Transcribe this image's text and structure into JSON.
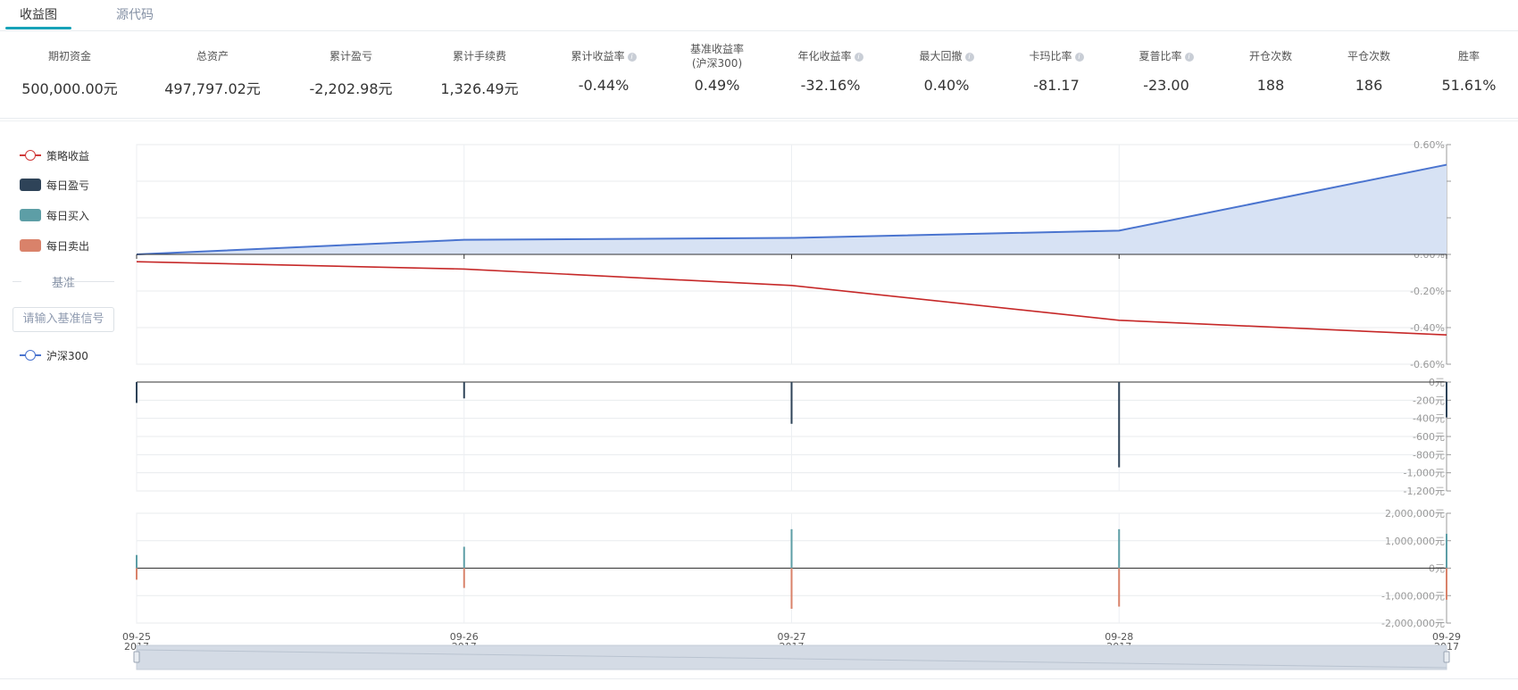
{
  "tabs": [
    {
      "label": "收益图",
      "active": true
    },
    {
      "label": "源代码",
      "active": false
    }
  ],
  "stats": [
    {
      "label": "期初资金",
      "value": "500,000.00元",
      "info": false
    },
    {
      "label": "总资产",
      "value": "497,797.02元",
      "info": false
    },
    {
      "label": "累计盈亏",
      "value": "-2,202.98元",
      "info": false
    },
    {
      "label": "累计手续费",
      "value": "1,326.49元",
      "info": false
    },
    {
      "label": "累计收益率",
      "value": "-0.44%",
      "info": true
    },
    {
      "label": "基准收益率",
      "sublabel": "(沪深300)",
      "value": "0.49%",
      "info": false
    },
    {
      "label": "年化收益率",
      "value": "-32.16%",
      "info": true
    },
    {
      "label": "最大回撤",
      "value": "0.40%",
      "info": true
    },
    {
      "label": "卡玛比率",
      "value": "-81.17",
      "info": true
    },
    {
      "label": "夏普比率",
      "value": "-23.00",
      "info": true
    },
    {
      "label": "开仓次数",
      "value": "188",
      "info": false
    },
    {
      "label": "平仓次数",
      "value": "186",
      "info": false
    },
    {
      "label": "胜率",
      "value": "51.61%",
      "info": false
    }
  ],
  "legend": {
    "items": [
      {
        "label": "策略收益",
        "kind": "line",
        "color": "#d03a3a"
      },
      {
        "label": "每日盈亏",
        "kind": "rect",
        "color": "#2e4358"
      },
      {
        "label": "每日买入",
        "kind": "rect",
        "color": "#5d9ea6"
      },
      {
        "label": "每日卖出",
        "kind": "rect",
        "color": "#d9826a"
      }
    ],
    "benchmark_title": "基准",
    "benchmark_placeholder": "请输入基准信号",
    "benchmark_item": {
      "label": "沪深300",
      "kind": "line",
      "color": "#4a74cf"
    }
  },
  "chart_data": [
    {
      "type": "line",
      "x": [
        "09-25\n2017",
        "09-26\n2017",
        "09-27\n2017",
        "09-28\n2017",
        "09-29\n2017"
      ],
      "series": [
        {
          "name": "策略收益",
          "values": [
            -0.04,
            -0.08,
            -0.17,
            -0.36,
            -0.44
          ],
          "color": "#c62828"
        },
        {
          "name": "沪深300",
          "values": [
            0.0,
            0.08,
            0.09,
            0.13,
            0.49
          ],
          "color": "#4a74cf",
          "fill": "#d7e2f4"
        }
      ],
      "ylim": [
        -0.6,
        0.6
      ],
      "yticks": [
        "0.60%",
        "0.40%",
        "0.20%",
        "0.00%",
        "-0.20%",
        "-0.40%",
        "-0.60%"
      ],
      "grid": true
    },
    {
      "type": "bar",
      "series": [
        {
          "name": "每日盈亏",
          "values": [
            -230,
            -180,
            -460,
            -940,
            -390
          ],
          "color": "#2e4358"
        }
      ],
      "ylim": [
        -1200,
        0
      ],
      "yticks": [
        "0元",
        "-200元",
        "-400元",
        "-600元",
        "-800元",
        "-1,000元",
        "-1,200元"
      ],
      "grid": true
    },
    {
      "type": "bar",
      "series": [
        {
          "name": "每日买入",
          "values": [
            480000,
            780000,
            1420000,
            1420000,
            1250000
          ],
          "color": "#5d9ea6"
        },
        {
          "name": "每日卖出",
          "values": [
            -420000,
            -720000,
            -1480000,
            -1400000,
            -1150000
          ],
          "color": "#d9826a"
        }
      ],
      "ylim": [
        -2000000,
        2000000
      ],
      "yticks": [
        "2,000,000元",
        "1,000,000元",
        "0元",
        "-1,000,000元",
        "-2,000,000元"
      ],
      "grid": true
    }
  ],
  "x_axis": {
    "dates": [
      "09-25",
      "09-26",
      "09-27",
      "09-28",
      "09-29"
    ],
    "years": [
      "2017",
      "2017",
      "2017",
      "2017",
      "2017"
    ]
  }
}
